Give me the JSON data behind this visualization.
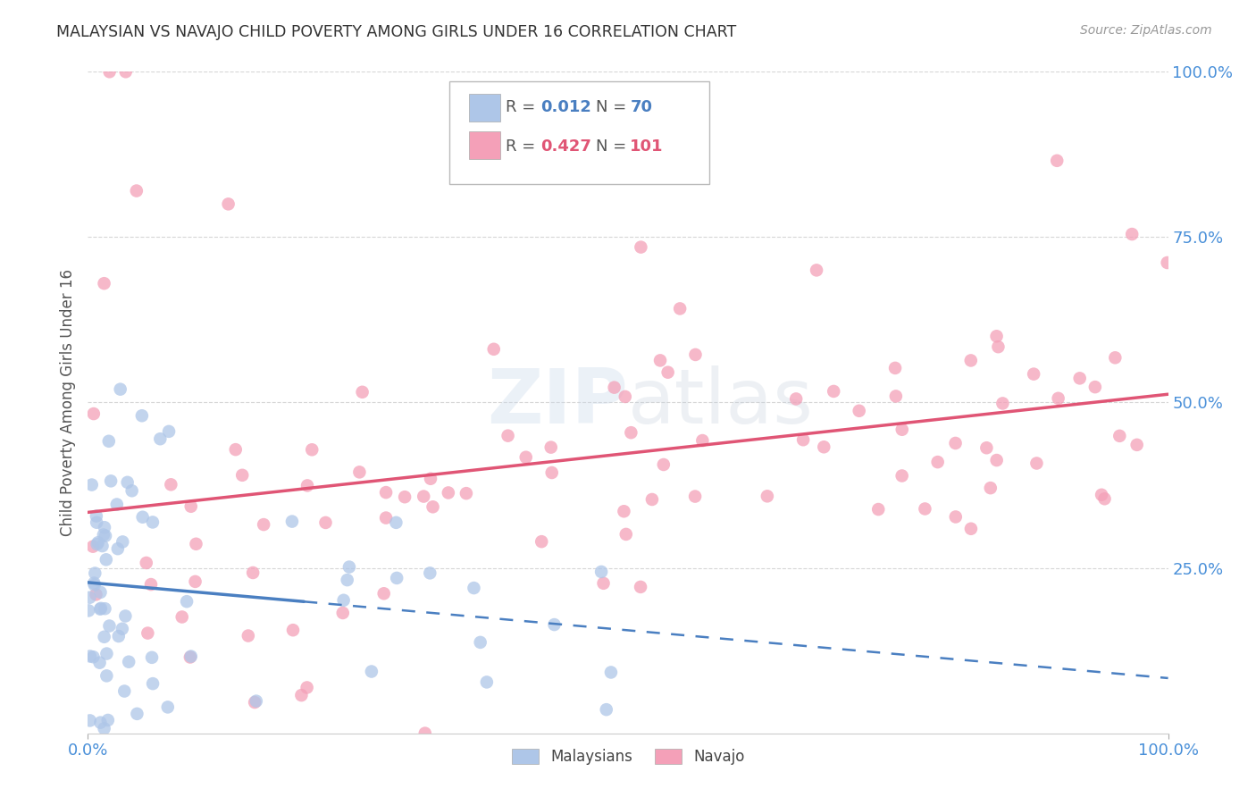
{
  "title": "MALAYSIAN VS NAVAJO CHILD POVERTY AMONG GIRLS UNDER 16 CORRELATION CHART",
  "source": "Source: ZipAtlas.com",
  "ylabel": "Child Poverty Among Girls Under 16",
  "watermark": "ZIPatlas",
  "malaysian_R": 0.012,
  "malaysian_N": 70,
  "navajo_R": 0.427,
  "navajo_N": 101,
  "blue_color": "#aec6e8",
  "pink_color": "#f4a0b8",
  "blue_line_color": "#4a7fc1",
  "pink_line_color": "#e05575",
  "background_color": "#ffffff",
  "grid_color": "#cccccc",
  "title_color": "#333333",
  "source_color": "#999999",
  "axis_label_color": "#4a90d9",
  "tick_label_color": "#4a90d9"
}
